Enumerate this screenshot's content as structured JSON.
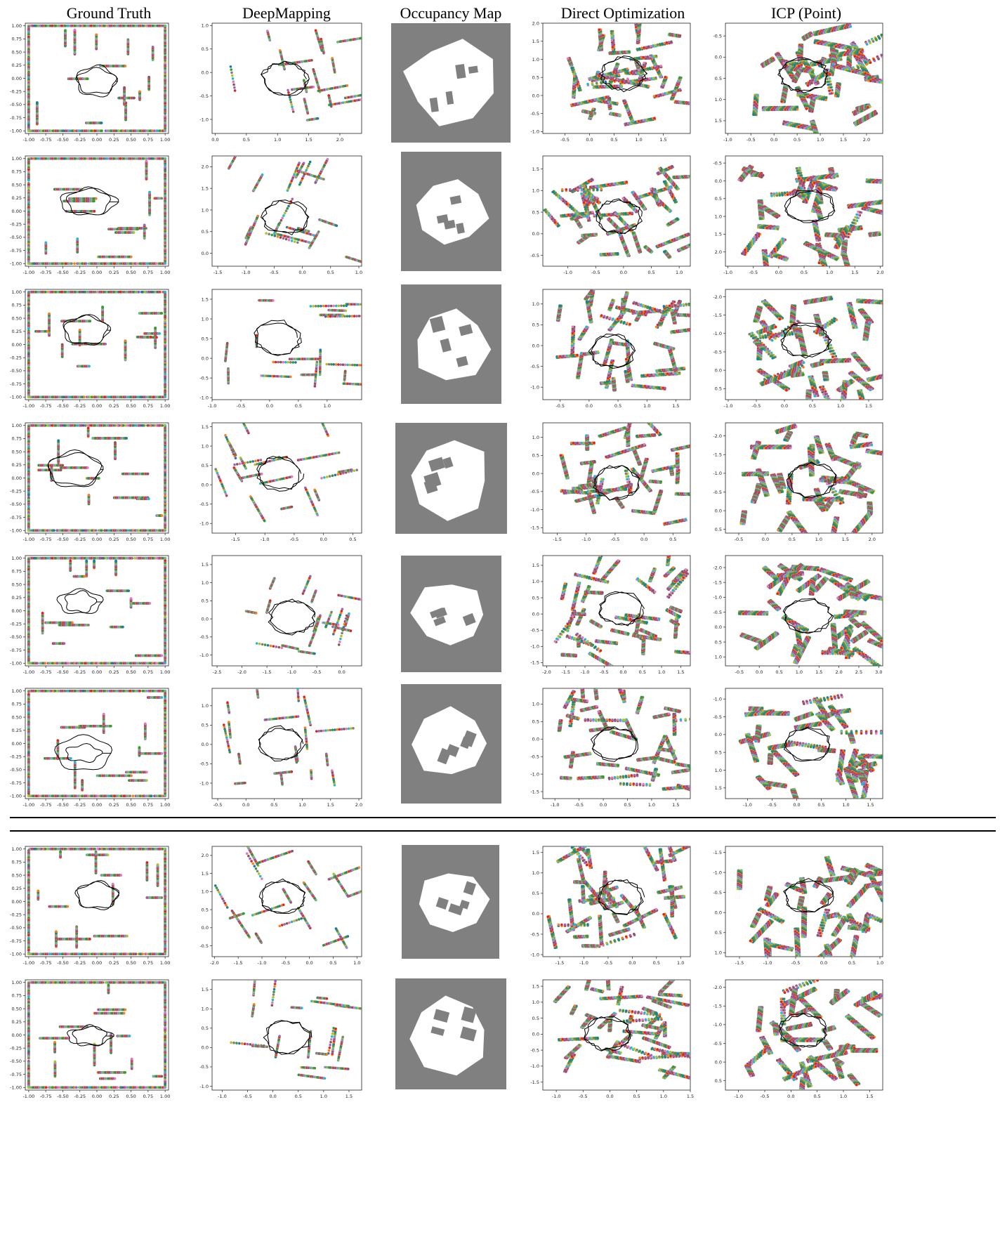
{
  "figure": {
    "columns": [
      {
        "id": "ground-truth",
        "label": "Ground Truth"
      },
      {
        "id": "deepmapping",
        "label": "DeepMapping"
      },
      {
        "id": "occupancy-map",
        "label": "Occupancy Map"
      },
      {
        "id": "direct-optimization",
        "label": "Direct Optimization"
      },
      {
        "id": "icp-point",
        "label": "ICP (Point)"
      }
    ],
    "colors": {
      "occupancy_background": "#808080",
      "occupancy_free": "#ffffff",
      "trajectory": "#000000",
      "scan_palette": [
        "#8c564b",
        "#e377c2",
        "#17becf",
        "#bcbd22",
        "#7f7f7f",
        "#2ca02c",
        "#1f77b4",
        "#ff7f0e",
        "#d62728",
        "#9467bd"
      ]
    }
  },
  "chart_data": [
    {
      "row": 1,
      "col": "ground-truth",
      "type": "scatter",
      "xticks": [
        "-1.00",
        "-0.75",
        "-0.50",
        "-0.25",
        "0.00",
        "0.25",
        "0.50",
        "0.75",
        "1.00"
      ],
      "yticks": [
        "-1.00",
        "-0.75",
        "-0.50",
        "-0.25",
        "0.00",
        "0.25",
        "0.50",
        "0.75",
        "1.00"
      ],
      "xlim": [
        -1.05,
        1.05
      ],
      "ylim": [
        1.05,
        -1.05
      ]
    },
    {
      "row": 1,
      "col": "deepmapping",
      "type": "scatter",
      "xticks": [
        "0.0",
        "0.5",
        "1.0",
        "1.5",
        "2.0"
      ],
      "yticks": [
        "-1.0",
        "-0.5",
        "0.0",
        "0.5",
        "1.0"
      ],
      "xlim": [
        -0.05,
        2.35
      ],
      "ylim": [
        1.05,
        -1.3
      ]
    },
    {
      "row": 1,
      "col": "direct-optimization",
      "type": "scatter",
      "xticks": [
        "-0.5",
        "0.0",
        "0.5",
        "1.0",
        "1.5"
      ],
      "yticks": [
        "-1.0",
        "-0.5",
        "0.0",
        "0.5",
        "1.0",
        "1.5",
        "2.0"
      ],
      "xlim": [
        -0.95,
        2.05
      ],
      "ylim": [
        2.0,
        -1.05
      ]
    },
    {
      "row": 1,
      "col": "icp-point",
      "type": "scatter",
      "xticks": [
        "-1.0",
        "-0.5",
        "0.0",
        "0.5",
        "1.0",
        "1.5",
        "2.0"
      ],
      "yticks": [
        "1.5",
        "1.0",
        "0.5",
        "0.0",
        "-0.5"
      ],
      "xlim": [
        -1.05,
        2.35
      ],
      "ylim": [
        -0.8,
        1.8
      ]
    },
    {
      "row": 2,
      "col": "ground-truth",
      "type": "scatter",
      "xticks": [
        "-1.00",
        "-0.75",
        "-0.50",
        "-0.25",
        "0.00",
        "0.25",
        "0.50",
        "0.75",
        "1.00"
      ],
      "yticks": [
        "-1.00",
        "-0.75",
        "-0.50",
        "-0.25",
        "0.00",
        "0.25",
        "0.50",
        "0.75",
        "1.00"
      ],
      "xlim": [
        -1.05,
        1.05
      ],
      "ylim": [
        1.05,
        -1.05
      ]
    },
    {
      "row": 2,
      "col": "deepmapping",
      "type": "scatter",
      "xticks": [
        "-1.5",
        "-1.0",
        "-0.5",
        "0.0",
        "0.5",
        "1.0"
      ],
      "yticks": [
        "0.0",
        "0.5",
        "1.0",
        "1.5",
        "2.0"
      ],
      "xlim": [
        -1.6,
        1.05
      ],
      "ylim": [
        2.25,
        -0.3
      ]
    },
    {
      "row": 2,
      "col": "direct-optimization",
      "type": "scatter",
      "xticks": [
        "-1.0",
        "-0.5",
        "0.0",
        "0.5",
        "1.0"
      ],
      "yticks": [
        "-0.5",
        "0.0",
        "0.5",
        "1.0",
        "1.5"
      ],
      "xlim": [
        -1.45,
        1.2
      ],
      "ylim": [
        1.8,
        -0.75
      ]
    },
    {
      "row": 2,
      "col": "icp-point",
      "type": "scatter",
      "xticks": [
        "-1.0",
        "-0.5",
        "0.0",
        "0.5",
        "1.0",
        "1.5",
        "2.0"
      ],
      "yticks": [
        "2.0",
        "1.5",
        "1.0",
        "0.5",
        "0.0",
        "-0.5"
      ],
      "xlim": [
        -1.05,
        2.05
      ],
      "ylim": [
        -0.7,
        2.4
      ]
    },
    {
      "row": 3,
      "col": "ground-truth",
      "type": "scatter",
      "xticks": [
        "-1.00",
        "-0.75",
        "-0.50",
        "-0.25",
        "0.00",
        "0.25",
        "0.50",
        "0.75",
        "1.00"
      ],
      "yticks": [
        "-1.00",
        "-0.75",
        "-0.50",
        "-0.25",
        "0.00",
        "0.25",
        "0.50",
        "0.75",
        "1.00"
      ],
      "xlim": [
        -1.05,
        1.05
      ],
      "ylim": [
        1.05,
        -1.05
      ]
    },
    {
      "row": 3,
      "col": "deepmapping",
      "type": "scatter",
      "xticks": [
        "-1.0",
        "-0.5",
        "0.0",
        "0.5",
        "1.0"
      ],
      "yticks": [
        "-1.0",
        "-0.5",
        "0.0",
        "0.5",
        "1.0",
        "1.5"
      ],
      "xlim": [
        -1.0,
        1.6
      ],
      "ylim": [
        1.75,
        -1.05
      ]
    },
    {
      "row": 3,
      "col": "direct-optimization",
      "type": "scatter",
      "xticks": [
        "-0.5",
        "0.0",
        "0.5",
        "1.0",
        "1.5"
      ],
      "yticks": [
        "-1.0",
        "-0.5",
        "0.0",
        "0.5",
        "1.0"
      ],
      "xlim": [
        -0.8,
        1.75
      ],
      "ylim": [
        1.35,
        -1.3
      ]
    },
    {
      "row": 3,
      "col": "icp-point",
      "type": "scatter",
      "xticks": [
        "-1.0",
        "-0.5",
        "0.0",
        "0.5",
        "1.0",
        "1.5"
      ],
      "yticks": [
        "0.5",
        "0.0",
        "-0.5",
        "-1.0",
        "-1.5",
        "-2.0"
      ],
      "xlim": [
        -1.05,
        1.75
      ],
      "ylim": [
        -2.2,
        0.8
      ]
    },
    {
      "row": 4,
      "col": "ground-truth",
      "type": "scatter",
      "xticks": [
        "-1.00",
        "-0.75",
        "-0.50",
        "-0.25",
        "0.00",
        "0.25",
        "0.50",
        "0.75",
        "1.00"
      ],
      "yticks": [
        "-1.00",
        "-0.75",
        "-0.50",
        "-0.25",
        "0.00",
        "0.25",
        "0.50",
        "0.75",
        "1.00"
      ],
      "xlim": [
        -1.05,
        1.05
      ],
      "ylim": [
        1.05,
        -1.05
      ]
    },
    {
      "row": 4,
      "col": "deepmapping",
      "type": "scatter",
      "xticks": [
        "-1.5",
        "-1.0",
        "-0.5",
        "0.0",
        "0.5"
      ],
      "yticks": [
        "-1.0",
        "-0.5",
        "0.0",
        "0.5",
        "1.0",
        "1.5"
      ],
      "xlim": [
        -1.9,
        0.65
      ],
      "ylim": [
        1.6,
        -1.25
      ]
    },
    {
      "row": 4,
      "col": "direct-optimization",
      "type": "scatter",
      "xticks": [
        "-1.5",
        "-1.0",
        "-0.5",
        "0.0",
        "0.5"
      ],
      "yticks": [
        "-1.5",
        "-1.0",
        "-0.5",
        "0.0",
        "0.5",
        "1.0"
      ],
      "xlim": [
        -1.75,
        0.8
      ],
      "ylim": [
        1.4,
        -1.65
      ]
    },
    {
      "row": 4,
      "col": "icp-point",
      "type": "scatter",
      "xticks": [
        "-0.5",
        "0.0",
        "0.5",
        "1.0",
        "1.5",
        "2.0"
      ],
      "yticks": [
        "0.5",
        "0.0",
        "-0.5",
        "-1.0",
        "-1.5",
        "-2.0"
      ],
      "xlim": [
        -0.75,
        2.2
      ],
      "ylim": [
        -2.35,
        0.6
      ]
    },
    {
      "row": 5,
      "col": "ground-truth",
      "type": "scatter",
      "xticks": [
        "-1.00",
        "-0.75",
        "-0.50",
        "-0.25",
        "0.00",
        "0.25",
        "0.50",
        "0.75",
        "1.00"
      ],
      "yticks": [
        "-1.00",
        "-0.75",
        "-0.50",
        "-0.25",
        "0.00",
        "0.25",
        "0.50",
        "0.75",
        "1.00"
      ],
      "xlim": [
        -1.05,
        1.05
      ],
      "ylim": [
        1.05,
        -1.05
      ]
    },
    {
      "row": 5,
      "col": "deepmapping",
      "type": "scatter",
      "xticks": [
        "-2.5",
        "-2.0",
        "-1.5",
        "-1.0",
        "-0.5",
        "0.0"
      ],
      "yticks": [
        "-1.0",
        "-0.5",
        "0.0",
        "0.5",
        "1.0",
        "1.5"
      ],
      "xlim": [
        -2.6,
        0.4
      ],
      "ylim": [
        1.75,
        -1.3
      ]
    },
    {
      "row": 5,
      "col": "direct-optimization",
      "type": "scatter",
      "xticks": [
        "-2.0",
        "-1.5",
        "-1.0",
        "-0.5",
        "0.0",
        "0.5",
        "1.0",
        "1.5"
      ],
      "yticks": [
        "-1.5",
        "-1.0",
        "-0.5",
        "0.0",
        "0.5",
        "1.0",
        "1.5"
      ],
      "xlim": [
        -2.1,
        1.75
      ],
      "ylim": [
        1.8,
        -1.6
      ]
    },
    {
      "row": 5,
      "col": "icp-point",
      "type": "scatter",
      "xticks": [
        "-0.5",
        "0.0",
        "0.5",
        "1.0",
        "1.5",
        "2.0",
        "2.5",
        "3.0"
      ],
      "yticks": [
        "1.0",
        "0.5",
        "0.0",
        "-0.5",
        "-1.0",
        "-1.5",
        "-2.0"
      ],
      "xlim": [
        -0.85,
        3.1
      ],
      "ylim": [
        -2.4,
        1.3
      ]
    },
    {
      "row": 6,
      "col": "ground-truth",
      "type": "scatter",
      "xticks": [
        "-1.00",
        "-0.75",
        "-0.50",
        "-0.25",
        "0.00",
        "0.25",
        "0.50",
        "0.75",
        "1.00"
      ],
      "yticks": [
        "-1.00",
        "-0.75",
        "-0.50",
        "-0.25",
        "0.00",
        "0.25",
        "0.50",
        "0.75",
        "1.00"
      ],
      "xlim": [
        -1.05,
        1.05
      ],
      "ylim": [
        1.05,
        -1.05
      ]
    },
    {
      "row": 6,
      "col": "deepmapping",
      "type": "scatter",
      "xticks": [
        "-0.5",
        "0.0",
        "0.5",
        "1.0",
        "1.5",
        "2.0"
      ],
      "yticks": [
        "-1.0",
        "-0.5",
        "0.0",
        "0.5",
        "1.0"
      ],
      "xlim": [
        -0.6,
        2.05
      ],
      "ylim": [
        1.45,
        -1.4
      ]
    },
    {
      "row": 6,
      "col": "direct-optimization",
      "type": "scatter",
      "xticks": [
        "-1.0",
        "-0.5",
        "0.0",
        "0.5",
        "1.0",
        "1.5"
      ],
      "yticks": [
        "-1.5",
        "-1.0",
        "-0.5",
        "0.0",
        "0.5",
        "1.0"
      ],
      "xlim": [
        -1.25,
        1.8
      ],
      "ylim": [
        1.45,
        -1.7
      ]
    },
    {
      "row": 6,
      "col": "icp-point",
      "type": "scatter",
      "xticks": [
        "-1.0",
        "-0.5",
        "0.0",
        "0.5",
        "1.0",
        "1.5"
      ],
      "yticks": [
        "1.5",
        "1.0",
        "0.5",
        "0.0",
        "-0.5",
        "-1.0"
      ],
      "xlim": [
        -1.45,
        1.75
      ],
      "ylim": [
        -1.3,
        1.8
      ]
    },
    {
      "row": 7,
      "col": "ground-truth",
      "type": "scatter",
      "xticks": [
        "-1.00",
        "-0.75",
        "-0.50",
        "-0.25",
        "0.00",
        "0.25",
        "0.50",
        "0.75",
        "1.00"
      ],
      "yticks": [
        "-1.00",
        "-0.75",
        "-0.50",
        "-0.25",
        "0.00",
        "0.25",
        "0.50",
        "0.75",
        "1.00"
      ],
      "xlim": [
        -1.05,
        1.05
      ],
      "ylim": [
        1.05,
        -1.05
      ]
    },
    {
      "row": 7,
      "col": "deepmapping",
      "type": "scatter",
      "xticks": [
        "-2.0",
        "-1.5",
        "-1.0",
        "-0.5",
        "0.0",
        "0.5",
        "1.0"
      ],
      "yticks": [
        "-0.5",
        "0.0",
        "0.5",
        "1.0",
        "1.5",
        "2.0"
      ],
      "xlim": [
        -2.05,
        1.1
      ],
      "ylim": [
        2.25,
        -0.8
      ]
    },
    {
      "row": 7,
      "col": "direct-optimization",
      "type": "scatter",
      "xticks": [
        "-1.5",
        "-1.0",
        "-0.5",
        "0.0",
        "0.5",
        "1.0"
      ],
      "yticks": [
        "-1.0",
        "-0.5",
        "0.0",
        "0.5",
        "1.0",
        "1.5"
      ],
      "xlim": [
        -1.85,
        1.2
      ],
      "ylim": [
        1.65,
        -1.05
      ]
    },
    {
      "row": 7,
      "col": "icp-point",
      "type": "scatter",
      "xticks": [
        "-1.5",
        "-1.0",
        "-0.5",
        "0.0",
        "0.5",
        "1.0"
      ],
      "yticks": [
        "1.0",
        "0.5",
        "0.0",
        "-0.5",
        "-1.0",
        "-1.5"
      ],
      "xlim": [
        -1.75,
        1.05
      ],
      "ylim": [
        -1.65,
        1.1
      ]
    },
    {
      "row": 8,
      "col": "ground-truth",
      "type": "scatter",
      "xticks": [
        "-1.00",
        "-0.75",
        "-0.50",
        "-0.25",
        "0.00",
        "0.25",
        "0.50",
        "0.75",
        "1.00"
      ],
      "yticks": [
        "-1.00",
        "-0.75",
        "-0.50",
        "-0.25",
        "0.00",
        "0.25",
        "0.50",
        "0.75",
        "1.00"
      ],
      "xlim": [
        -1.05,
        1.05
      ],
      "ylim": [
        1.05,
        -1.05
      ]
    },
    {
      "row": 8,
      "col": "deepmapping",
      "type": "scatter",
      "xticks": [
        "-1.0",
        "-0.5",
        "0.0",
        "0.5",
        "1.0",
        "1.5"
      ],
      "yticks": [
        "-1.0",
        "-0.5",
        "0.0",
        "0.5",
        "1.0",
        "1.5"
      ],
      "xlim": [
        -1.2,
        1.75
      ],
      "ylim": [
        1.75,
        -1.1
      ]
    },
    {
      "row": 8,
      "col": "direct-optimization",
      "type": "scatter",
      "xticks": [
        "-1.0",
        "-0.5",
        "0.0",
        "0.5",
        "1.0",
        "1.5"
      ],
      "yticks": [
        "-1.5",
        "-1.0",
        "-0.5",
        "0.0",
        "0.5",
        "1.0",
        "1.5"
      ],
      "xlim": [
        -1.25,
        1.5
      ],
      "ylim": [
        1.7,
        -1.75
      ]
    },
    {
      "row": 8,
      "col": "icp-point",
      "type": "scatter",
      "xticks": [
        "-1.0",
        "-0.5",
        "0.0",
        "0.5",
        "1.0",
        "1.5"
      ],
      "yticks": [
        "0.5",
        "0.0",
        "-0.5",
        "-1.0",
        "-1.5",
        "-2.0"
      ],
      "xlim": [
        -1.25,
        1.75
      ],
      "ylim": [
        -2.2,
        0.75
      ]
    }
  ]
}
